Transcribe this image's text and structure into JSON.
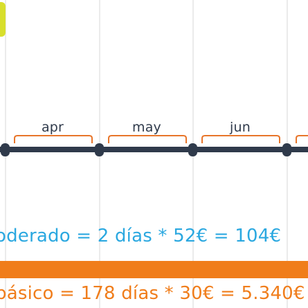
{
  "timeline": {
    "months": [
      "apr",
      "may",
      "jun"
    ]
  },
  "calculations": {
    "moderate": "oderado = 2 días * 52€ = 104€",
    "basic": "básico = 178 días * 30€ = 5.340€"
  },
  "colors": {
    "timeline": "#2f3a4b",
    "brace": "#e8752a",
    "moderate_text": "#2ba8e0",
    "basic_bar": "#f07d1b",
    "basic_text": "#f07d1b",
    "tab": "#d8df2c"
  }
}
